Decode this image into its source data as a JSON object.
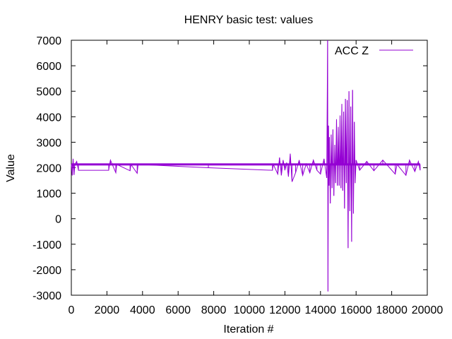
{
  "chart_data": {
    "type": "line",
    "title": "HENRY basic test: values",
    "xlabel": "Iteration #",
    "ylabel": "Value",
    "xlim": [
      0,
      20000
    ],
    "ylim": [
      -3000,
      7000
    ],
    "x_ticks": [
      0,
      2000,
      4000,
      6000,
      8000,
      10000,
      12000,
      14000,
      16000,
      18000,
      20000
    ],
    "x_tick_labels": [
      "0",
      "2000",
      "4000",
      "6000",
      "8000",
      "10000",
      "12000",
      "14000",
      "16000",
      "18000",
      "20000"
    ],
    "y_ticks": [
      -3000,
      -2000,
      -1000,
      0,
      1000,
      2000,
      3000,
      4000,
      5000,
      6000,
      7000
    ],
    "y_tick_labels": [
      "-3000",
      "-2000",
      "-1000",
      "0",
      "1000",
      "2000",
      "3000",
      "4000",
      "5000",
      "6000",
      "7000"
    ],
    "grid": false,
    "legend_position": "top-right",
    "series": [
      {
        "name": "ACC Z",
        "color": "#9400d3",
        "x_range": [
          0,
          19600
        ],
        "baseline": 2130,
        "x": [
          0,
          50,
          100,
          150,
          200,
          300,
          400,
          2100,
          2150,
          2200,
          2500,
          2550,
          3300,
          3350,
          3700,
          3750,
          7700,
          11300,
          11350,
          11600,
          11700,
          11800,
          11900,
          12000,
          12100,
          12200,
          12300,
          12400,
          12600,
          12800,
          13000,
          13200,
          13400,
          13600,
          13800,
          14000,
          14200,
          14350,
          14400,
          14420,
          14450,
          14480,
          14500,
          14550,
          14600,
          14650,
          14700,
          14750,
          14800,
          14850,
          14900,
          14950,
          15000,
          15050,
          15100,
          15150,
          15200,
          15250,
          15300,
          15350,
          15400,
          15450,
          15500,
          15550,
          15600,
          15650,
          15700,
          15750,
          15800,
          15850,
          15900,
          15950,
          16000,
          16200,
          16600,
          17000,
          17500,
          18200,
          18300,
          18800,
          19000,
          19300,
          19500,
          19600
        ],
        "y": [
          2130,
          1700,
          2350,
          1720,
          2130,
          2250,
          1900,
          1900,
          2130,
          2300,
          1800,
          2130,
          1880,
          2130,
          1780,
          2130,
          2000,
          1900,
          2130,
          1750,
          2400,
          1700,
          2300,
          1900,
          2200,
          1650,
          2550,
          1450,
          1800,
          2300,
          1700,
          2150,
          1800,
          2300,
          1900,
          1750,
          2350,
          1600,
          7000,
          -2850,
          3650,
          1300,
          3200,
          600,
          3300,
          1200,
          3500,
          900,
          2900,
          1400,
          3900,
          1300,
          3600,
          1300,
          4050,
          1200,
          4500,
          1100,
          4200,
          400,
          4700,
          1400,
          4650,
          -1150,
          5000,
          300,
          4400,
          -900,
          5050,
          200,
          3800,
          1400,
          2300,
          1900,
          2250,
          1880,
          2300,
          1750,
          2130,
          1700,
          2300,
          1850,
          2250,
          1900
        ]
      }
    ]
  }
}
